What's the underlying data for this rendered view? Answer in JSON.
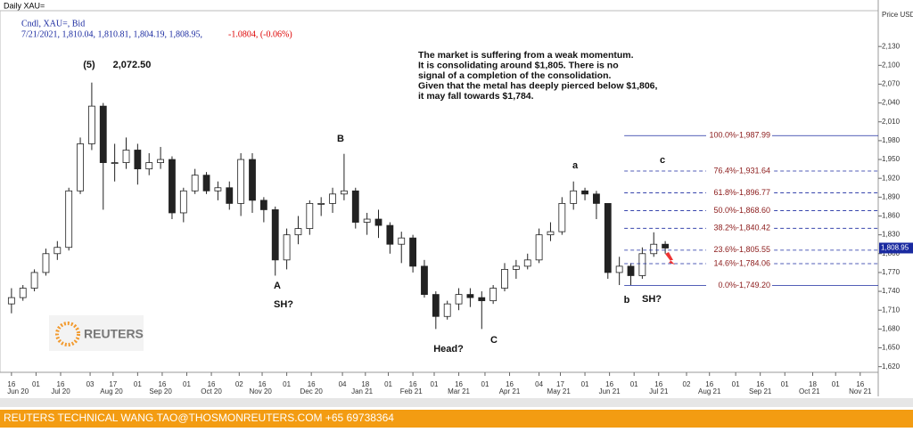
{
  "chart_data": {
    "type": "candlestick",
    "title": "Daily XAU=",
    "subtitle": "Cndl, XAU=, Bid",
    "quote_line": "7/21/2021, 1,810.04, 1,810.81, 1,804.19, 1,808.95,",
    "quote_change": "-1.0804, (-0.06%)",
    "y_axis_label": "Price USD Ozs",
    "price_tag": "1,808.95",
    "note": [
      "The market is suffering from a weak momentum.",
      "It is consolidating around $1,805. There is no",
      "signal of a completion of the consolidation.",
      "Given that the metal has deeply pierced below $1,806,",
      "it may fall towards $1,784."
    ],
    "wave_labels": [
      "(5)",
      "2,072.50",
      "A",
      "SH?",
      "B",
      "Head?",
      "C",
      "a",
      "b",
      "SH?",
      "c"
    ],
    "logo": "REUTERS",
    "footer": "REUTERS TECHNICAL  WANG.TAO@THOSMONREUTERS.COM  +65 69738364",
    "x": [
      15,
      22,
      29,
      36,
      43,
      50,
      57,
      64,
      71,
      78,
      85,
      92,
      99,
      106,
      113,
      120,
      127,
      134,
      141,
      148,
      155,
      162,
      169,
      176,
      183,
      190,
      197,
      204,
      211,
      218,
      225,
      232,
      239,
      246,
      253,
      260,
      267,
      274,
      281,
      288,
      295,
      302,
      309,
      316,
      323,
      330,
      337,
      344,
      351,
      358,
      365,
      372,
      379,
      386,
      393,
      400,
      407,
      414
    ],
    "open": [
      1720,
      1730,
      1745,
      1770,
      1800,
      1810,
      1900,
      1975,
      2035,
      1945,
      1945,
      1965,
      1935,
      1945,
      1950,
      1865,
      1900,
      1925,
      1900,
      1905,
      1880,
      1950,
      1885,
      1870,
      1790,
      1830,
      1840,
      1880,
      1880,
      1895,
      1900,
      1850,
      1855,
      1845,
      1815,
      1825,
      1780,
      1735,
      1700,
      1720,
      1735,
      1730,
      1725,
      1745,
      1775,
      1780,
      1790,
      1830,
      1835,
      1880,
      1900,
      1895,
      1880,
      1770,
      1780,
      1765,
      1800,
      1815
    ],
    "high": [
      1745,
      1750,
      1775,
      1808,
      1820,
      1905,
      1985,
      2072.5,
      2040,
      1975,
      1985,
      1975,
      1960,
      1970,
      1955,
      1905,
      1935,
      1930,
      1915,
      1915,
      1960,
      1960,
      1890,
      1875,
      1840,
      1860,
      1885,
      1890,
      1905,
      1959,
      1905,
      1865,
      1870,
      1850,
      1835,
      1830,
      1790,
      1740,
      1725,
      1745,
      1745,
      1740,
      1750,
      1785,
      1790,
      1800,
      1840,
      1850,
      1890,
      1915,
      1905,
      1900,
      1880,
      1795,
      1785,
      1810,
      1834,
      1820
    ],
    "low": [
      1705,
      1725,
      1740,
      1765,
      1790,
      1805,
      1895,
      1965,
      1870,
      1915,
      1935,
      1910,
      1925,
      1935,
      1855,
      1850,
      1895,
      1895,
      1885,
      1870,
      1860,
      1865,
      1850,
      1765,
      1775,
      1815,
      1830,
      1860,
      1865,
      1885,
      1840,
      1830,
      1825,
      1800,
      1785,
      1770,
      1730,
      1680,
      1695,
      1710,
      1715,
      1680,
      1720,
      1740,
      1760,
      1775,
      1785,
      1820,
      1830,
      1870,
      1885,
      1855,
      1760,
      1750,
      1750,
      1760,
      1795,
      1800
    ],
    "close": [
      1730,
      1745,
      1770,
      1800,
      1810,
      1900,
      1975,
      2035,
      1945,
      1945,
      1965,
      1935,
      1945,
      1950,
      1865,
      1900,
      1925,
      1900,
      1905,
      1880,
      1950,
      1885,
      1870,
      1790,
      1830,
      1840,
      1880,
      1880,
      1895,
      1900,
      1850,
      1855,
      1845,
      1815,
      1825,
      1780,
      1735,
      1700,
      1720,
      1735,
      1730,
      1725,
      1745,
      1775,
      1780,
      1790,
      1830,
      1835,
      1880,
      1900,
      1895,
      1880,
      1770,
      1780,
      1765,
      1800,
      1815,
      1808.95
    ],
    "fib_levels": [
      {
        "value": 1987.99,
        "text": "100.0%-1,987.99",
        "dashed": false
      },
      {
        "value": 1931.64,
        "text": "76.4%-1,931.64",
        "dashed": true
      },
      {
        "value": 1896.77,
        "text": "61.8%-1,896.77",
        "dashed": true
      },
      {
        "value": 1868.6,
        "text": "50.0%-1,868.60",
        "dashed": true
      },
      {
        "value": 1840.42,
        "text": "38.2%-1,840.42",
        "dashed": true
      },
      {
        "value": 1805.55,
        "text": "23.6%-1,805.55",
        "dashed": true
      },
      {
        "value": 1784.06,
        "text": "14.6%-1,784.06",
        "dashed": true
      },
      {
        "value": 1749.2,
        "text": "0.0%-1,749.20",
        "dashed": false
      }
    ],
    "fib_start": 389,
    "xlim": [
      8,
      544
    ],
    "ylim": [
      1611,
      2187
    ],
    "yticks": [
      {
        "value": 1620,
        "label": "1,620"
      },
      {
        "value": 1650,
        "label": "1,650"
      },
      {
        "value": 1680,
        "label": "1,680"
      },
      {
        "value": 1710,
        "label": "1,710"
      },
      {
        "value": 1740,
        "label": "1,740"
      },
      {
        "value": 1770,
        "label": "1,770"
      },
      {
        "value": 1800,
        "label": "1,800"
      },
      {
        "value": 1830,
        "label": "1,830"
      },
      {
        "value": 1860,
        "label": "1,860"
      },
      {
        "value": 1890,
        "label": "1,890"
      },
      {
        "value": 1920,
        "label": "1,920"
      },
      {
        "value": 1950,
        "label": "1,950"
      },
      {
        "value": 1980,
        "label": "1,980"
      },
      {
        "value": 2010,
        "label": "2,010"
      },
      {
        "value": 2040,
        "label": "2,040"
      },
      {
        "value": 2070,
        "label": "2,070"
      },
      {
        "value": 2100,
        "label": "2,100"
      },
      {
        "value": 2130,
        "label": "2,130"
      }
    ],
    "xticks": [
      {
        "value": 15,
        "label": "16"
      },
      {
        "value": 30,
        "label": "01"
      },
      {
        "value": 45,
        "label": "16"
      },
      {
        "value": 63,
        "label": "03"
      },
      {
        "value": 77,
        "label": "17"
      },
      {
        "value": 92,
        "label": "01"
      },
      {
        "value": 107,
        "label": "16"
      },
      {
        "value": 122,
        "label": "01"
      },
      {
        "value": 137,
        "label": "16"
      },
      {
        "value": 154,
        "label": "02"
      },
      {
        "value": 168,
        "label": "16"
      },
      {
        "value": 183,
        "label": "01"
      },
      {
        "value": 198,
        "label": "16"
      },
      {
        "value": 217,
        "label": "04"
      },
      {
        "value": 231,
        "label": "18"
      },
      {
        "value": 245,
        "label": "01"
      },
      {
        "value": 260,
        "label": "16"
      },
      {
        "value": 273,
        "label": "01"
      },
      {
        "value": 288,
        "label": "16"
      },
      {
        "value": 304,
        "label": "01"
      },
      {
        "value": 319,
        "label": "16"
      },
      {
        "value": 337,
        "label": "04"
      },
      {
        "value": 350,
        "label": "17"
      },
      {
        "value": 365,
        "label": "01"
      },
      {
        "value": 380,
        "label": "16"
      },
      {
        "value": 395,
        "label": "01"
      },
      {
        "value": 410,
        "label": "16"
      },
      {
        "value": 427,
        "label": "02"
      },
      {
        "value": 441,
        "label": "16"
      },
      {
        "value": 457,
        "label": "01"
      },
      {
        "value": 472,
        "label": "16"
      },
      {
        "value": 487,
        "label": "01"
      },
      {
        "value": 504,
        "label": "18"
      },
      {
        "value": 518,
        "label": "01"
      },
      {
        "value": 533,
        "label": "16"
      }
    ],
    "month_labels": [
      {
        "value": 19,
        "label": "Jun 20"
      },
      {
        "value": 45,
        "label": "Jul 20"
      },
      {
        "value": 76,
        "label": "Aug 20"
      },
      {
        "value": 106,
        "label": "Sep 20"
      },
      {
        "value": 137,
        "label": "Oct 20"
      },
      {
        "value": 167,
        "label": "Nov 20"
      },
      {
        "value": 198,
        "label": "Dec 20"
      },
      {
        "value": 229,
        "label": "Jan 21"
      },
      {
        "value": 259,
        "label": "Feb 21"
      },
      {
        "value": 288,
        "label": "Mar 21"
      },
      {
        "value": 319,
        "label": "Apr 21"
      },
      {
        "value": 349,
        "label": "May 21"
      },
      {
        "value": 380,
        "label": "Jun 21"
      },
      {
        "value": 410,
        "label": "Jul 21"
      },
      {
        "value": 441,
        "label": "Aug 21"
      },
      {
        "value": 472,
        "label": "Sep 21"
      },
      {
        "value": 502,
        "label": "Oct 21"
      },
      {
        "value": 533,
        "label": "Nov 21"
      }
    ]
  }
}
